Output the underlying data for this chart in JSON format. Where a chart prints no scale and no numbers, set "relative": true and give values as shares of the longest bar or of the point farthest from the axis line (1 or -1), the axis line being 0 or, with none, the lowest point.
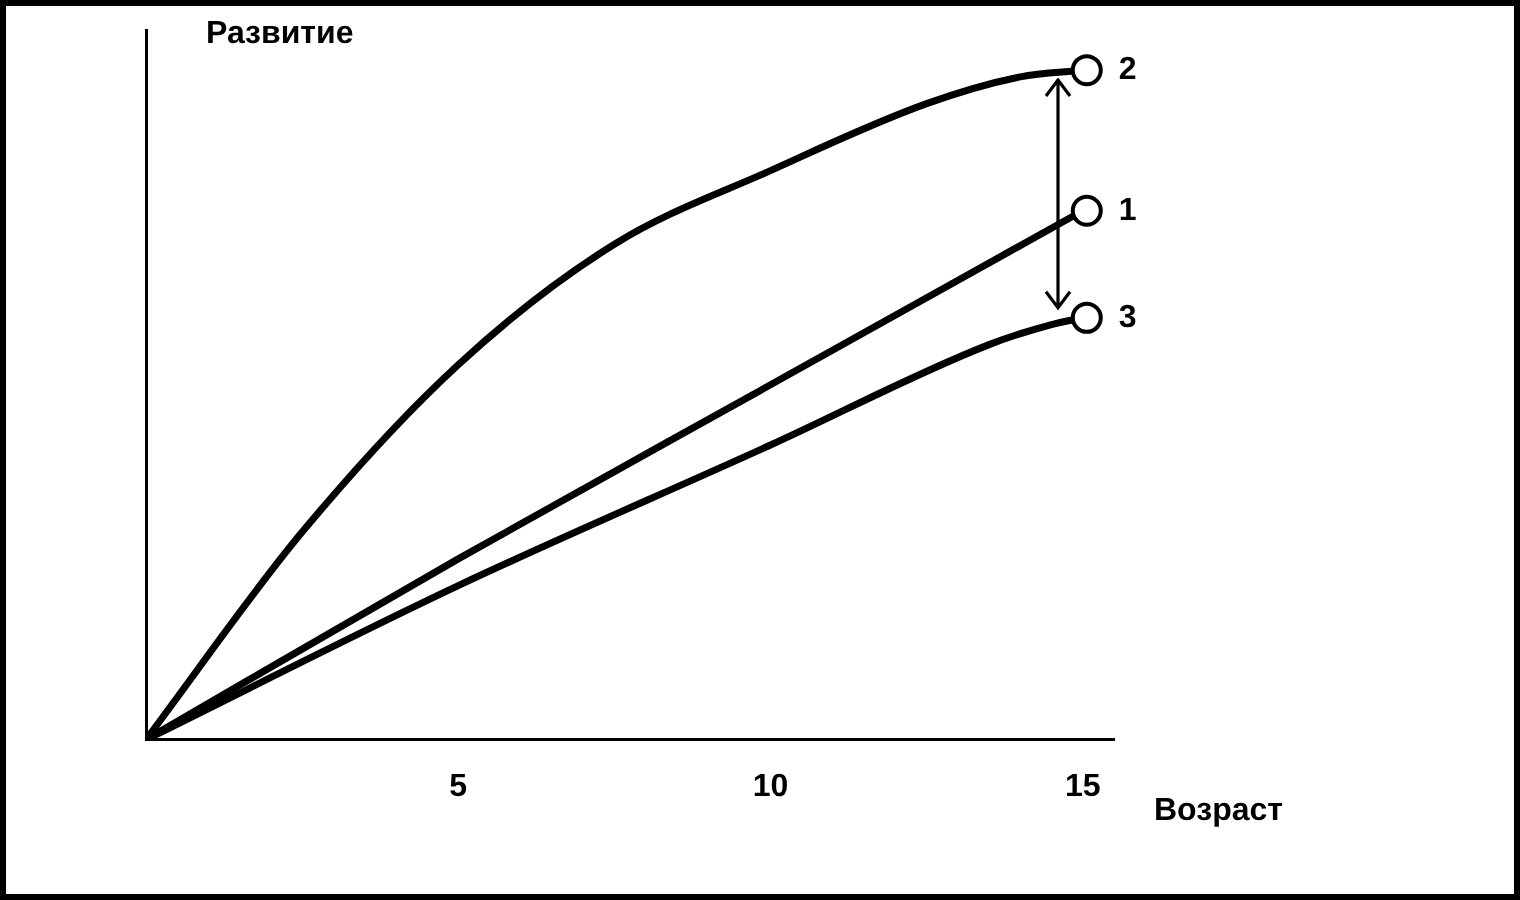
{
  "chart_data": {
    "type": "line",
    "xlabel": "Возраст",
    "ylabel": "Развитие",
    "relative": true,
    "xlim": [
      0,
      15.5
    ],
    "xticks": [
      5,
      10,
      15
    ],
    "grid": false,
    "legend": "right",
    "line_style": "solid",
    "series": [
      {
        "name": "1",
        "color": "#000000",
        "x": [
          0,
          5,
          10,
          15
        ],
        "values": [
          0,
          0.27,
          0.53,
          0.79
        ]
      },
      {
        "name": "2",
        "color": "#000000",
        "x": [
          0,
          2.5,
          5,
          7.5,
          10,
          12.5,
          14,
          15
        ],
        "values": [
          0,
          0.31,
          0.56,
          0.74,
          0.85,
          0.95,
          0.99,
          1
        ]
      },
      {
        "name": "3",
        "color": "#000000",
        "x": [
          0,
          5,
          10,
          13.5,
          14.5,
          15
        ],
        "values": [
          0,
          0.23,
          0.44,
          0.59,
          0.62,
          0.63
        ]
      }
    ]
  }
}
